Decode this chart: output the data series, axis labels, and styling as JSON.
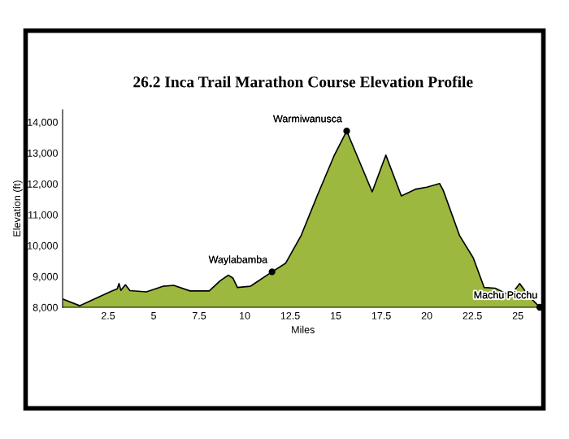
{
  "chart_data": {
    "type": "area",
    "title": "26.2 Inca Trail Marathon Course Elevation Profile",
    "xlabel": "Miles",
    "ylabel": "Elevation (ft)",
    "x": [
      0,
      0.95,
      2.6,
      3.0,
      3.1,
      3.2,
      3.45,
      3.7,
      4.6,
      5.5,
      6.1,
      7.0,
      8.05,
      8.65,
      9.1,
      9.35,
      9.6,
      10.3,
      11.5,
      12.25,
      13.1,
      14.0,
      14.9,
      15.6,
      17.0,
      17.75,
      18.6,
      19.4,
      20.0,
      20.7,
      20.9,
      21.8,
      22.55,
      23.15,
      23.75,
      24.3,
      24.6,
      25.1,
      25.55,
      26.2
    ],
    "series": [
      {
        "color": "#9cb83e",
        "values": [
          8270,
          8050,
          8500,
          8600,
          8770,
          8550,
          8730,
          8540,
          8500,
          8680,
          8710,
          8530,
          8530,
          8860,
          9040,
          8950,
          8640,
          8680,
          9150,
          9430,
          10330,
          11640,
          12900,
          13710,
          11740,
          12930,
          11610,
          11830,
          11890,
          12010,
          11790,
          10320,
          9600,
          8640,
          8620,
          8460,
          8380,
          8770,
          8400,
          8000
        ]
      }
    ],
    "xlim": [
      0,
      26.4
    ],
    "ylim": [
      8000,
      14400
    ],
    "xticks": [
      2.5,
      5,
      7.5,
      10,
      12.5,
      15,
      17.5,
      20,
      22.5,
      25
    ],
    "yticks": [
      {
        "value": 8000,
        "label": "8,000"
      },
      {
        "value": 9000,
        "label": "9,000"
      },
      {
        "value": 10000,
        "label": "10,000"
      },
      {
        "value": 11000,
        "label": "11,000"
      },
      {
        "value": 12000,
        "label": "12,000"
      },
      {
        "value": 13000,
        "label": "13,000"
      },
      {
        "value": 14000,
        "label": "14,000"
      }
    ],
    "annotations": [
      {
        "text": "Waylabamba",
        "x": 11.5,
        "y": 9150
      },
      {
        "text": "Warmiwanusca",
        "x": 15.6,
        "y": 13710
      },
      {
        "text": "Machu Picchu",
        "x": 26.2,
        "y": 8000
      }
    ],
    "grid": false,
    "legend": false
  }
}
